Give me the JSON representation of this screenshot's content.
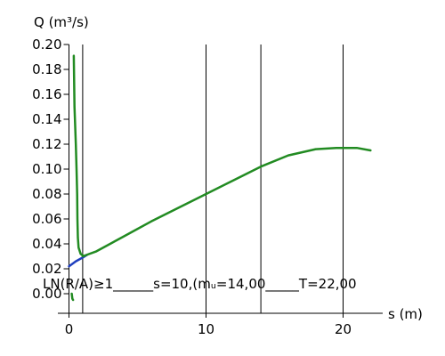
{
  "chart_data": {
    "type": "line",
    "ylabel": "Q (m³/s)",
    "xlabel": "s (m)",
    "xlim": [
      -0.5,
      22.5
    ],
    "ylim": [
      -0.005,
      0.2
    ],
    "x_ticks": [
      0,
      10,
      20
    ],
    "x_tick_labels": [
      "0",
      "10",
      "20"
    ],
    "y_ticks": [
      0.0,
      0.02,
      0.04,
      0.06,
      0.08,
      0.1,
      0.12,
      0.14,
      0.16,
      0.18,
      0.2
    ],
    "y_tick_labels": [
      "0.00",
      "0.02",
      "0.04",
      "0.06",
      "0.08",
      "0.10",
      "0.12",
      "0.14",
      "0.16",
      "0.18",
      "0.20"
    ],
    "vlines": [
      1,
      10,
      14,
      20
    ],
    "colors": {
      "main": "#228b22",
      "blue": "#1f3fbf",
      "grid": "#000000"
    },
    "series": [
      {
        "color": "#228b22",
        "points": [
          [
            0.35,
            0.191
          ],
          [
            0.4,
            0.15
          ],
          [
            0.5,
            0.12
          ],
          [
            0.55,
            0.1
          ],
          [
            0.6,
            0.08
          ],
          [
            0.62,
            0.06
          ],
          [
            0.65,
            0.045
          ],
          [
            0.7,
            0.037
          ],
          [
            0.85,
            0.032
          ],
          [
            1.1,
            0.03
          ]
        ]
      },
      {
        "color": "#1f3fbf",
        "points": [
          [
            0.0,
            0.022
          ],
          [
            0.5,
            0.026
          ],
          [
            1.0,
            0.029
          ],
          [
            1.3,
            0.031
          ]
        ]
      },
      {
        "color": "#228b22",
        "points": [
          [
            1.0,
            0.03
          ],
          [
            2.0,
            0.034
          ],
          [
            4.0,
            0.046
          ],
          [
            6.0,
            0.058
          ],
          [
            8.0,
            0.069
          ],
          [
            10.0,
            0.08
          ],
          [
            12.0,
            0.091
          ],
          [
            14.0,
            0.102
          ],
          [
            16.0,
            0.111
          ],
          [
            18.0,
            0.116
          ],
          [
            19.5,
            0.117
          ],
          [
            21.0,
            0.117
          ],
          [
            22.0,
            0.115
          ]
        ]
      },
      {
        "color": "#228b22",
        "points": [
          [
            0.2,
            0.0
          ],
          [
            0.25,
            -0.004
          ],
          [
            0.3,
            -0.005
          ]
        ]
      }
    ],
    "annotation": "LN(R/A)≥1______s=10,(mᵤ=14,00_____T=22,00"
  }
}
